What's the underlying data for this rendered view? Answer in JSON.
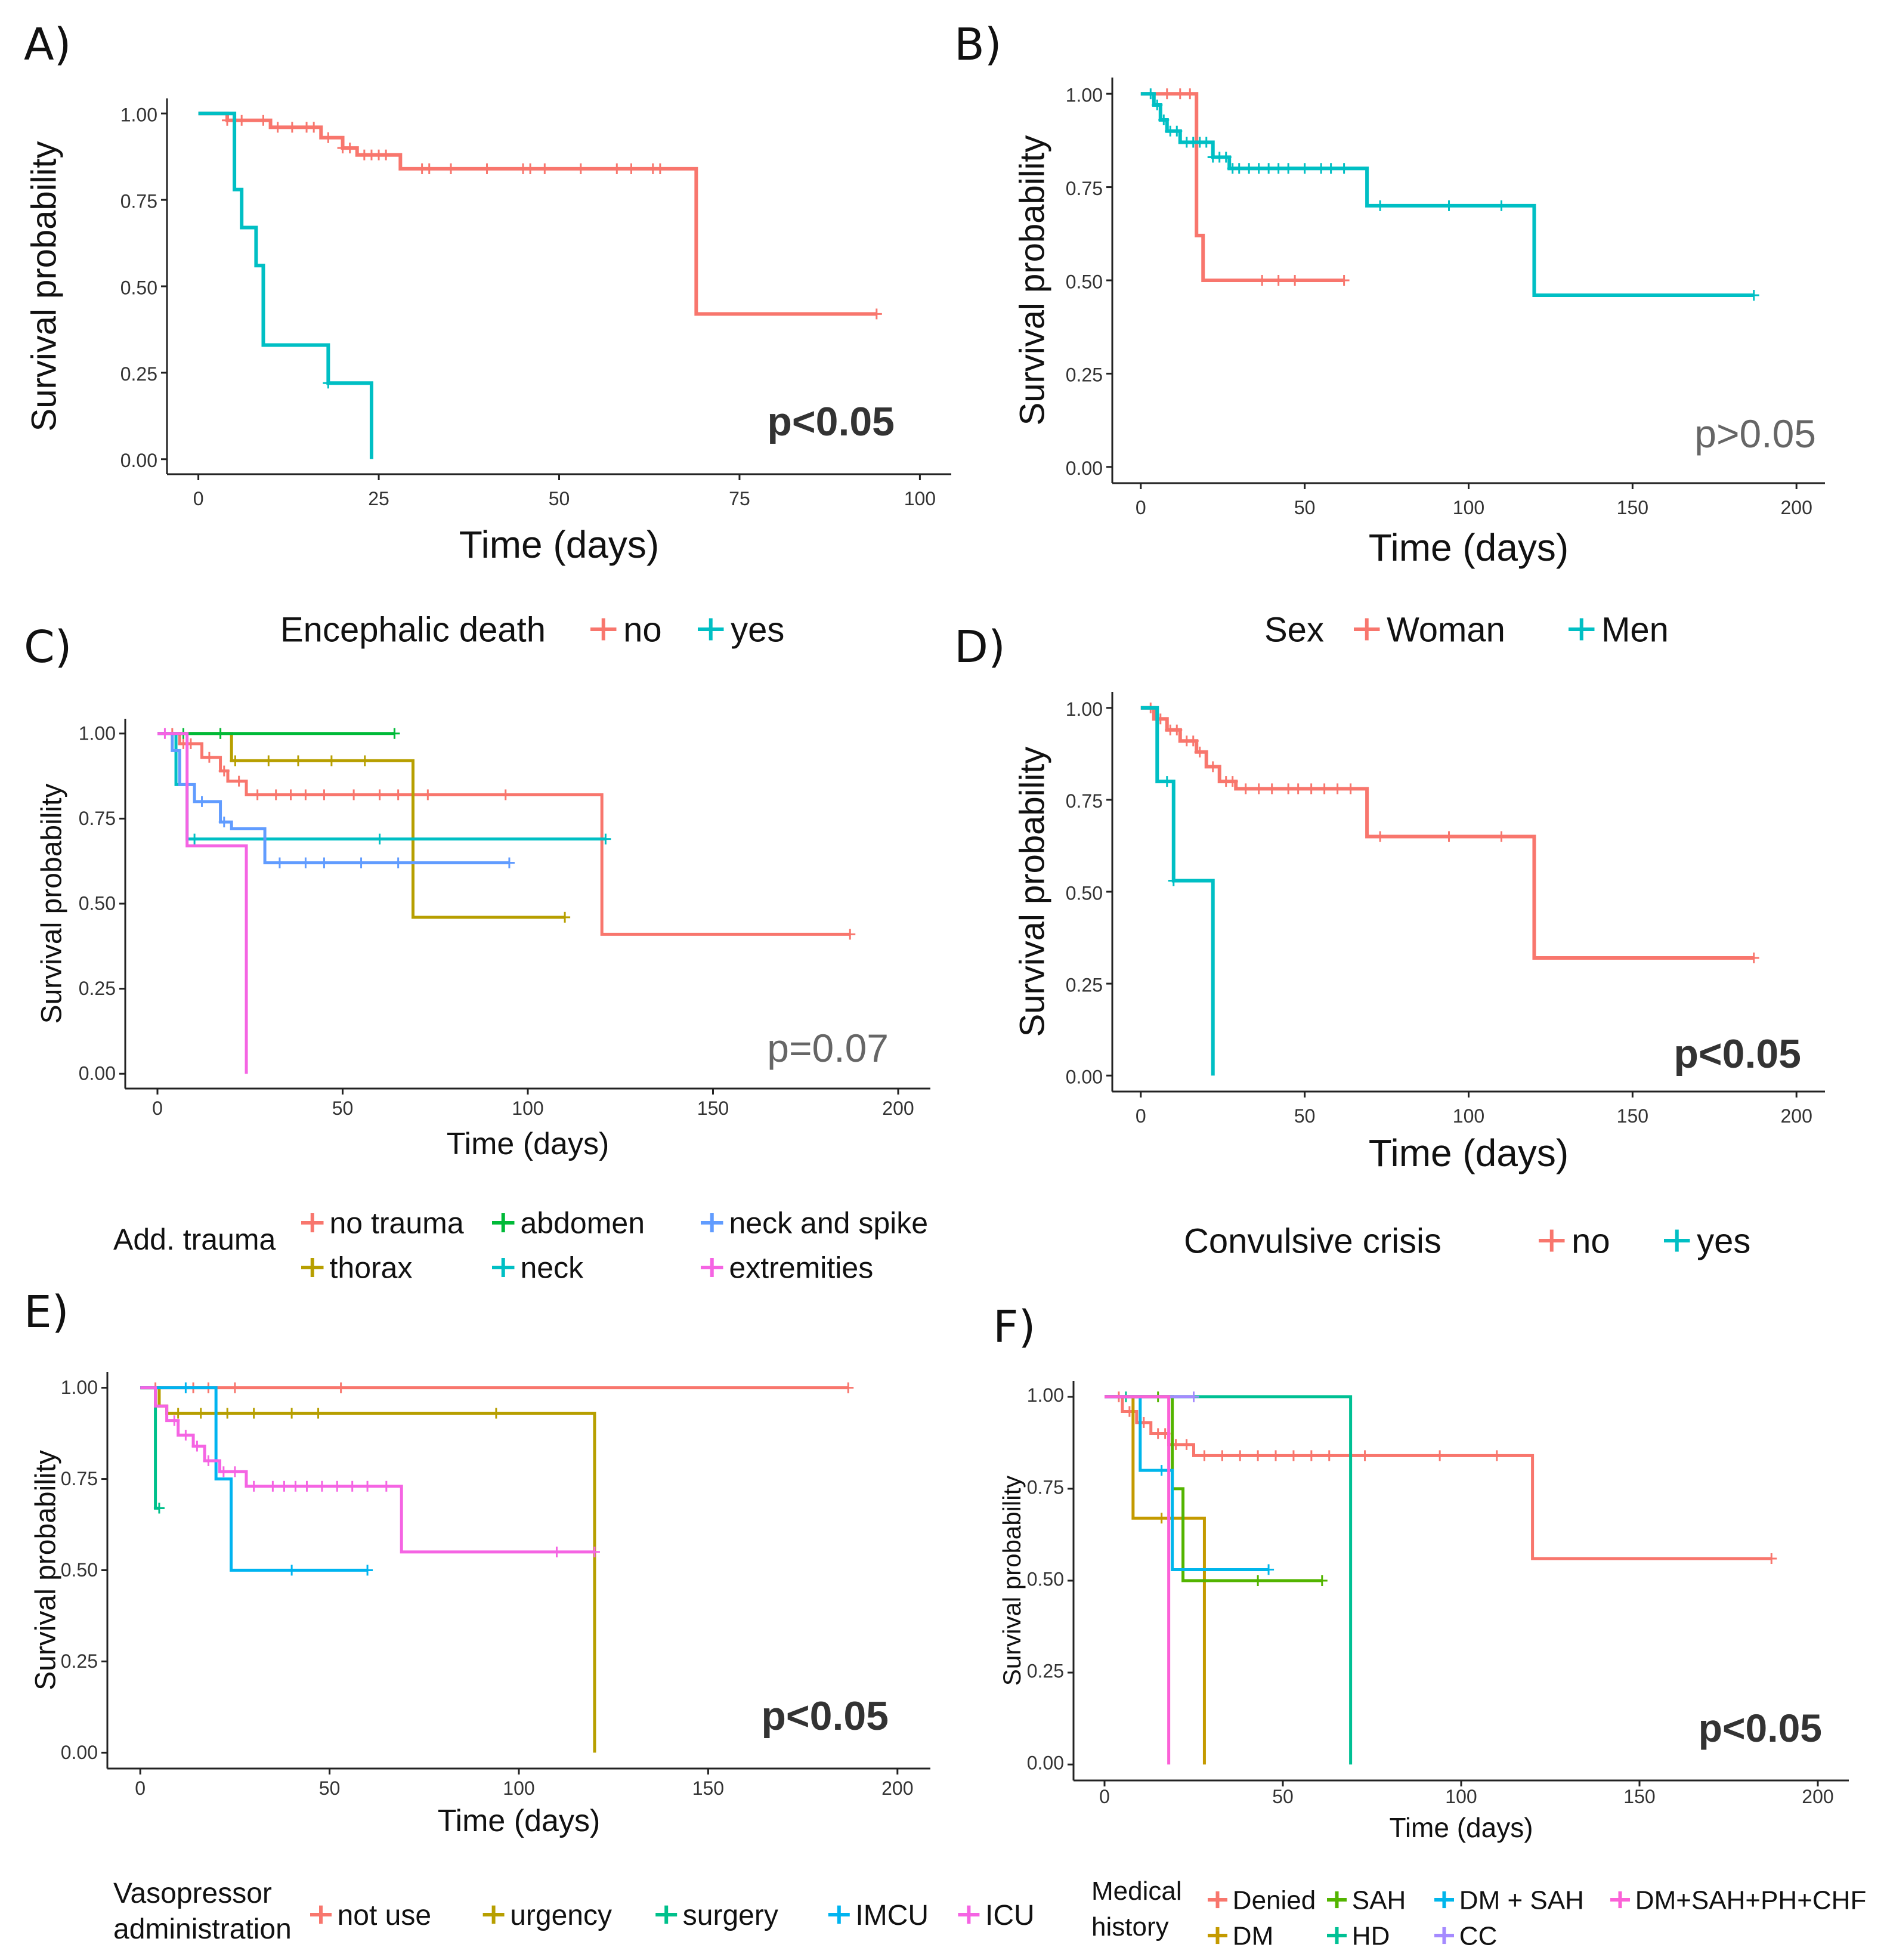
{
  "chart_data": [
    {
      "panel": "A)",
      "type": "line",
      "subtype": "kaplan-meier",
      "xlabel": "Time (days)",
      "ylabel": "Survival probability",
      "xlim": [
        0,
        100
      ],
      "ylim": [
        0,
        1
      ],
      "xticks": [
        0,
        25,
        50,
        75,
        100
      ],
      "yticks": [
        "0.00",
        "0.25",
        "0.50",
        "0.75",
        "1.00"
      ],
      "pvalue": "p<0.05",
      "pvalue_bold": true,
      "legend_title": "Encephalic death",
      "series": [
        {
          "name": "no",
          "color": "#F8766D",
          "steps": [
            [
              0,
              1.0
            ],
            [
              4,
              0.98
            ],
            [
              10,
              0.96
            ],
            [
              17,
              0.93
            ],
            [
              20,
              0.9
            ],
            [
              22,
              0.88
            ],
            [
              28,
              0.84
            ],
            [
              69,
              0.84
            ],
            [
              69,
              0.42
            ],
            [
              94,
              0.42
            ]
          ],
          "censor_x": [
            4,
            6,
            9,
            11,
            13,
            15,
            16,
            18,
            20,
            21,
            23,
            24,
            25,
            26,
            31,
            32,
            35,
            40,
            45,
            46,
            48,
            53,
            58,
            60,
            63,
            64,
            94
          ]
        },
        {
          "name": "yes",
          "color": "#00BFC4",
          "steps": [
            [
              0,
              1.0
            ],
            [
              5,
              1.0
            ],
            [
              5,
              0.78
            ],
            [
              6,
              0.67
            ],
            [
              8,
              0.56
            ],
            [
              9,
              0.33
            ],
            [
              18,
              0.33
            ],
            [
              18,
              0.22
            ],
            [
              24,
              0.22
            ],
            [
              24,
              0.0
            ]
          ],
          "censor_x": [
            18
          ]
        }
      ]
    },
    {
      "panel": "B)",
      "type": "line",
      "subtype": "kaplan-meier",
      "xlabel": "Time (days)",
      "ylabel": "Survival probability",
      "xlim": [
        0,
        200
      ],
      "ylim": [
        0,
        1
      ],
      "xticks": [
        0,
        50,
        100,
        150,
        200
      ],
      "yticks": [
        "0.00",
        "0.25",
        "0.50",
        "0.75",
        "1.00"
      ],
      "pvalue": "p>0.05",
      "pvalue_bold": false,
      "legend_title": "Sex",
      "series": [
        {
          "name": "Woman",
          "color": "#F8766D",
          "steps": [
            [
              0,
              1.0
            ],
            [
              17,
              1.0
            ],
            [
              17,
              0.62
            ],
            [
              19,
              0.5
            ],
            [
              62,
              0.5
            ]
          ],
          "censor_x": [
            8,
            12,
            15,
            37,
            42,
            47,
            62
          ]
        },
        {
          "name": "Men",
          "color": "#00BFC4",
          "steps": [
            [
              0,
              1.0
            ],
            [
              4,
              0.97
            ],
            [
              6,
              0.93
            ],
            [
              8,
              0.9
            ],
            [
              12,
              0.87
            ],
            [
              22,
              0.83
            ],
            [
              27,
              0.8
            ],
            [
              69,
              0.8
            ],
            [
              69,
              0.7
            ],
            [
              120,
              0.7
            ],
            [
              120,
              0.46
            ],
            [
              187,
              0.46
            ]
          ],
          "censor_x": [
            3,
            5,
            7,
            9,
            11,
            14,
            16,
            18,
            20,
            22,
            24,
            26,
            28,
            30,
            33,
            36,
            39,
            42,
            45,
            50,
            55,
            58,
            62,
            73,
            94,
            110,
            187
          ]
        }
      ]
    },
    {
      "panel": "C)",
      "type": "line",
      "subtype": "kaplan-meier",
      "xlabel": "Time (days)",
      "ylabel": "Survival probability",
      "xlim": [
        0,
        200
      ],
      "ylim": [
        0,
        1
      ],
      "xticks": [
        0,
        50,
        100,
        150,
        200
      ],
      "yticks": [
        "0.00",
        "0.25",
        "0.50",
        "0.75",
        "1.00"
      ],
      "pvalue": "p=0.07",
      "pvalue_bold": false,
      "legend_title": "Add. trauma",
      "series": [
        {
          "name": "no trauma",
          "color": "#F8766D",
          "steps": [
            [
              0,
              1.0
            ],
            [
              6,
              0.97
            ],
            [
              12,
              0.93
            ],
            [
              17,
              0.89
            ],
            [
              19,
              0.86
            ],
            [
              24,
              0.82
            ],
            [
              120,
              0.82
            ],
            [
              120,
              0.41
            ],
            [
              187,
              0.41
            ]
          ],
          "censor_x": [
            4,
            7,
            9,
            14,
            18,
            22,
            27,
            32,
            36,
            40,
            45,
            53,
            60,
            65,
            73,
            94,
            187
          ]
        },
        {
          "name": "thorax",
          "color": "#B79F00",
          "steps": [
            [
              0,
              1.0
            ],
            [
              20,
              1.0
            ],
            [
              20,
              0.92
            ],
            [
              69,
              0.92
            ],
            [
              69,
              0.46
            ],
            [
              110,
              0.46
            ]
          ],
          "censor_x": [
            17,
            21,
            30,
            38,
            47,
            56,
            110
          ]
        },
        {
          "name": "abdomen",
          "color": "#00BA38",
          "steps": [
            [
              0,
              1.0
            ],
            [
              64,
              1.0
            ]
          ],
          "censor_x": [
            7,
            17,
            64
          ]
        },
        {
          "name": "neck",
          "color": "#00BFC4",
          "steps": [
            [
              0,
              1.0
            ],
            [
              5,
              1.0
            ],
            [
              5,
              0.85
            ],
            [
              8,
              0.69
            ],
            [
              121,
              0.69
            ]
          ],
          "censor_x": [
            10,
            60,
            121
          ]
        },
        {
          "name": "neck and spike",
          "color": "#619CFF",
          "steps": [
            [
              0,
              1.0
            ],
            [
              4,
              0.95
            ],
            [
              6,
              0.85
            ],
            [
              10,
              0.8
            ],
            [
              17,
              0.74
            ],
            [
              20,
              0.72
            ],
            [
              29,
              0.62
            ],
            [
              95,
              0.62
            ]
          ],
          "censor_x": [
            12,
            18,
            33,
            40,
            45,
            55,
            65,
            95
          ]
        },
        {
          "name": "extremities",
          "color": "#F564E3",
          "steps": [
            [
              0,
              1.0
            ],
            [
              8,
              1.0
            ],
            [
              8,
              0.67
            ],
            [
              24,
              0.67
            ],
            [
              24,
              0.0
            ]
          ],
          "censor_x": [
            2
          ]
        }
      ]
    },
    {
      "panel": "D)",
      "type": "line",
      "subtype": "kaplan-meier",
      "xlabel": "Time (days)",
      "ylabel": "Survival probability",
      "xlim": [
        0,
        200
      ],
      "ylim": [
        0,
        1
      ],
      "xticks": [
        0,
        50,
        100,
        150,
        200
      ],
      "yticks": [
        "0.00",
        "0.25",
        "0.50",
        "0.75",
        "1.00"
      ],
      "pvalue": "p<0.05",
      "pvalue_bold": true,
      "legend_title": "Convulsive crisis",
      "series": [
        {
          "name": "no",
          "color": "#F8766D",
          "steps": [
            [
              0,
              1.0
            ],
            [
              4,
              0.97
            ],
            [
              8,
              0.94
            ],
            [
              12,
              0.91
            ],
            [
              17,
              0.88
            ],
            [
              20,
              0.84
            ],
            [
              24,
              0.8
            ],
            [
              29,
              0.78
            ],
            [
              69,
              0.78
            ],
            [
              69,
              0.65
            ],
            [
              120,
              0.65
            ],
            [
              120,
              0.32
            ],
            [
              187,
              0.32
            ]
          ],
          "censor_x": [
            3,
            6,
            9,
            11,
            14,
            16,
            18,
            22,
            26,
            28,
            32,
            36,
            40,
            45,
            48,
            52,
            56,
            60,
            64,
            73,
            94,
            110,
            187
          ]
        },
        {
          "name": "yes",
          "color": "#00BFC4",
          "steps": [
            [
              0,
              1.0
            ],
            [
              5,
              1.0
            ],
            [
              5,
              0.8
            ],
            [
              10,
              0.8
            ],
            [
              10,
              0.53
            ],
            [
              22,
              0.53
            ],
            [
              22,
              0.0
            ]
          ],
          "censor_x": [
            8,
            10
          ]
        }
      ]
    },
    {
      "panel": "E)",
      "type": "line",
      "subtype": "kaplan-meier",
      "xlabel": "Time (days)",
      "ylabel": "Survival probability",
      "xlim": [
        0,
        200
      ],
      "ylim": [
        0,
        1
      ],
      "xticks": [
        0,
        50,
        100,
        150,
        200
      ],
      "yticks": [
        "0.00",
        "0.25",
        "0.50",
        "0.75",
        "1.00"
      ],
      "pvalue": "p<0.05",
      "pvalue_bold": true,
      "legend_title": "Vasopressor administration",
      "series": [
        {
          "name": "not use",
          "color": "#F8766D",
          "steps": [
            [
              0,
              1.0
            ],
            [
              187,
              1.0
            ]
          ],
          "censor_x": [
            4,
            14,
            18,
            25,
            53,
            187
          ]
        },
        {
          "name": "urgency",
          "color": "#B79F00",
          "steps": [
            [
              0,
              1.0
            ],
            [
              5,
              0.95
            ],
            [
              7,
              0.93
            ],
            [
              120,
              0.93
            ],
            [
              120,
              0.0
            ]
          ],
          "censor_x": [
            10,
            16,
            23,
            30,
            40,
            47,
            94
          ]
        },
        {
          "name": "surgery",
          "color": "#00C08B",
          "steps": [
            [
              0,
              1.0
            ],
            [
              4,
              1.0
            ],
            [
              4,
              0.67
            ],
            [
              5,
              0.67
            ]
          ],
          "censor_x": [
            5
          ]
        },
        {
          "name": "IMCU",
          "color": "#00B4F0",
          "steps": [
            [
              0,
              1.0
            ],
            [
              20,
              1.0
            ],
            [
              20,
              0.75
            ],
            [
              24,
              0.75
            ],
            [
              24,
              0.5
            ],
            [
              60,
              0.5
            ]
          ],
          "censor_x": [
            12,
            40,
            60
          ]
        },
        {
          "name": "ICU",
          "color": "#F564E3",
          "steps": [
            [
              0,
              1.0
            ],
            [
              4,
              0.95
            ],
            [
              7,
              0.91
            ],
            [
              10,
              0.87
            ],
            [
              14,
              0.84
            ],
            [
              17,
              0.8
            ],
            [
              21,
              0.77
            ],
            [
              28,
              0.73
            ],
            [
              69,
              0.73
            ],
            [
              69,
              0.55
            ],
            [
              120,
              0.55
            ]
          ],
          "censor_x": [
            9,
            12,
            15,
            18,
            22,
            25,
            30,
            35,
            38,
            41,
            44,
            48,
            52,
            56,
            60,
            65,
            110,
            120
          ]
        }
      ]
    },
    {
      "panel": "F)",
      "type": "line",
      "subtype": "kaplan-meier",
      "xlabel": "Time (days)",
      "ylabel": "Survival probability",
      "xlim": [
        0,
        200
      ],
      "ylim": [
        0,
        1
      ],
      "xticks": [
        0,
        50,
        100,
        150,
        200
      ],
      "yticks": [
        "0.00",
        "0.25",
        "0.50",
        "0.75",
        "1.00"
      ],
      "pvalue": "p<0.05",
      "pvalue_bold": true,
      "legend_title": "Medical history",
      "series": [
        {
          "name": "Denied",
          "color": "#F8766D",
          "steps": [
            [
              0,
              1.0
            ],
            [
              5,
              0.96
            ],
            [
              9,
              0.93
            ],
            [
              13,
              0.9
            ],
            [
              18,
              0.87
            ],
            [
              25,
              0.84
            ],
            [
              120,
              0.84
            ],
            [
              120,
              0.56
            ],
            [
              187,
              0.56
            ]
          ],
          "censor_x": [
            4,
            7,
            11,
            15,
            17,
            20,
            23,
            28,
            33,
            38,
            43,
            48,
            53,
            58,
            63,
            73,
            94,
            110,
            187
          ]
        },
        {
          "name": "DM",
          "color": "#C49A00",
          "steps": [
            [
              0,
              1.0
            ],
            [
              8,
              1.0
            ],
            [
              8,
              0.67
            ],
            [
              28,
              0.67
            ],
            [
              28,
              0.0
            ]
          ],
          "censor_x": [
            16
          ]
        },
        {
          "name": "SAH",
          "color": "#53B400",
          "steps": [
            [
              0,
              1.0
            ],
            [
              19,
              1.0
            ],
            [
              19,
              0.75
            ],
            [
              22,
              0.75
            ],
            [
              22,
              0.5
            ],
            [
              61,
              0.5
            ]
          ],
          "censor_x": [
            15,
            43,
            61
          ]
        },
        {
          "name": "HD",
          "color": "#00C094",
          "steps": [
            [
              0,
              1.0
            ],
            [
              69,
              1.0
            ],
            [
              69,
              0.0
            ]
          ],
          "censor_x": [
            6
          ]
        },
        {
          "name": "DM + SAH",
          "color": "#00B6EB",
          "steps": [
            [
              0,
              1.0
            ],
            [
              10,
              1.0
            ],
            [
              10,
              0.8
            ],
            [
              19,
              0.8
            ],
            [
              19,
              0.53
            ],
            [
              46,
              0.53
            ]
          ],
          "censor_x": [
            16,
            46
          ]
        },
        {
          "name": "CC",
          "color": "#A58AFF",
          "steps": [
            [
              0,
              1.0
            ],
            [
              25,
              1.0
            ]
          ],
          "censor_x": [
            25
          ]
        },
        {
          "name": "DM+SAH+PH+CHF",
          "color": "#FB61D7",
          "steps": [
            [
              0,
              1.0
            ],
            [
              18,
              1.0
            ],
            [
              18,
              0.0
            ]
          ],
          "censor_x": []
        }
      ]
    }
  ]
}
